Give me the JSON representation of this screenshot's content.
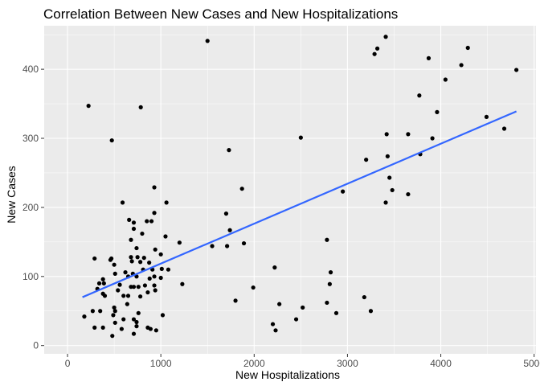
{
  "chart_data": {
    "type": "scatter",
    "title": "Correlation Between New Cases and New Hospitalizations",
    "xlabel": "New Hospitalizations",
    "ylabel": "New Cases",
    "xlim": [
      -250,
      5020
    ],
    "ylim": [
      -12,
      463
    ],
    "xticks": [
      0,
      1000,
      2000,
      3000,
      4000,
      5000
    ],
    "yticks": [
      0,
      100,
      200,
      300,
      400
    ],
    "xtick_labels": [
      "0",
      "1000",
      "2000",
      "3000",
      "4000",
      "5000"
    ],
    "ytick_labels": [
      "0",
      "100",
      "200",
      "300",
      "400"
    ],
    "grid": true,
    "panel_bg": "#ebebeb",
    "grid_major": "#ffffff",
    "point_color": "#000000",
    "trend_color": "#3366ff",
    "trend_line": {
      "x": [
        160,
        4810
      ],
      "y": [
        70,
        339
      ]
    },
    "points": [
      [
        225,
        347
      ],
      [
        785,
        345
      ],
      [
        475,
        297
      ],
      [
        1500,
        441
      ],
      [
        3410,
        447
      ],
      [
        3320,
        430
      ],
      [
        3290,
        422
      ],
      [
        4290,
        431
      ],
      [
        3870,
        416
      ],
      [
        4220,
        406
      ],
      [
        4810,
        399
      ],
      [
        4050,
        385
      ],
      [
        3770,
        362
      ],
      [
        3960,
        338
      ],
      [
        4490,
        331
      ],
      [
        4680,
        314
      ],
      [
        3650,
        306
      ],
      [
        3420,
        306
      ],
      [
        3910,
        300
      ],
      [
        3780,
        277
      ],
      [
        3430,
        274
      ],
      [
        3200,
        269
      ],
      [
        3450,
        243
      ],
      [
        3480,
        225
      ],
      [
        3650,
        219
      ],
      [
        3410,
        207
      ],
      [
        2950,
        223
      ],
      [
        2500,
        301
      ],
      [
        1730,
        283
      ],
      [
        1870,
        227
      ],
      [
        1700,
        191
      ],
      [
        1740,
        167
      ],
      [
        1890,
        148
      ],
      [
        1550,
        144
      ],
      [
        1710,
        144
      ],
      [
        2780,
        153
      ],
      [
        2220,
        113
      ],
      [
        2820,
        106
      ],
      [
        2810,
        89
      ],
      [
        1990,
        84
      ],
      [
        1800,
        65
      ],
      [
        2270,
        60
      ],
      [
        2520,
        55
      ],
      [
        3180,
        70
      ],
      [
        2780,
        62
      ],
      [
        2880,
        47
      ],
      [
        3250,
        50
      ],
      [
        2450,
        38
      ],
      [
        2200,
        31
      ],
      [
        2230,
        22
      ],
      [
        590,
        207
      ],
      [
        930,
        229
      ],
      [
        1060,
        207
      ],
      [
        930,
        192
      ],
      [
        660,
        182
      ],
      [
        850,
        180
      ],
      [
        900,
        180
      ],
      [
        710,
        178
      ],
      [
        710,
        169
      ],
      [
        800,
        162
      ],
      [
        1050,
        158
      ],
      [
        680,
        153
      ],
      [
        1200,
        149
      ],
      [
        740,
        141
      ],
      [
        940,
        139
      ],
      [
        1000,
        132
      ],
      [
        290,
        126
      ],
      [
        470,
        126
      ],
      [
        680,
        128
      ],
      [
        750,
        128
      ],
      [
        820,
        127
      ],
      [
        460,
        124
      ],
      [
        690,
        122
      ],
      [
        780,
        121
      ],
      [
        875,
        120
      ],
      [
        500,
        117
      ],
      [
        1010,
        111
      ],
      [
        810,
        110
      ],
      [
        910,
        110
      ],
      [
        1080,
        110
      ],
      [
        510,
        104
      ],
      [
        620,
        106
      ],
      [
        700,
        104
      ],
      [
        650,
        100
      ],
      [
        740,
        100
      ],
      [
        880,
        97
      ],
      [
        930,
        100
      ],
      [
        1000,
        98
      ],
      [
        380,
        96
      ],
      [
        390,
        90
      ],
      [
        1230,
        89
      ],
      [
        560,
        88
      ],
      [
        680,
        85
      ],
      [
        710,
        85
      ],
      [
        760,
        85
      ],
      [
        830,
        87
      ],
      [
        930,
        87
      ],
      [
        320,
        82
      ],
      [
        540,
        80
      ],
      [
        860,
        77
      ],
      [
        940,
        80
      ],
      [
        380,
        75
      ],
      [
        400,
        72
      ],
      [
        600,
        72
      ],
      [
        650,
        72
      ],
      [
        780,
        71
      ],
      [
        640,
        60
      ],
      [
        500,
        55
      ],
      [
        510,
        50
      ],
      [
        270,
        50
      ],
      [
        350,
        50
      ],
      [
        760,
        47
      ],
      [
        1020,
        44
      ],
      [
        490,
        44
      ],
      [
        600,
        38
      ],
      [
        710,
        38
      ],
      [
        510,
        33
      ],
      [
        740,
        34
      ],
      [
        740,
        28
      ],
      [
        290,
        26
      ],
      [
        380,
        26
      ],
      [
        580,
        24
      ],
      [
        890,
        24
      ],
      [
        860,
        26
      ],
      [
        950,
        22
      ],
      [
        710,
        17
      ],
      [
        480,
        14
      ],
      [
        180,
        42
      ],
      [
        340,
        90
      ]
    ]
  }
}
